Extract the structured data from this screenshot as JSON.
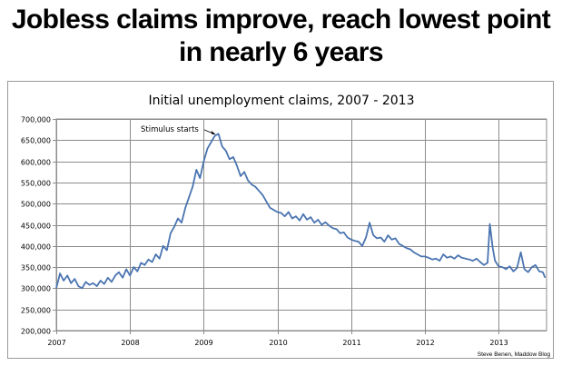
{
  "headline": {
    "line1": "Jobless claims improve, reach lowest point",
    "line2": "in nearly 6 years"
  },
  "credit": "Steve Benen, Maddow Blog",
  "colors": {
    "line": "#4a74b0",
    "grid": "#8c8c8c",
    "text": "#000000"
  },
  "chart_data": {
    "type": "line",
    "title": "Initial unemployment claims, 2007 - 2013",
    "xlabel": "",
    "ylabel": "",
    "xlim": [
      2007.0,
      2013.65
    ],
    "ylim": [
      200000,
      700000
    ],
    "grid": true,
    "legend": "none",
    "x_ticks": [
      2007,
      2008,
      2009,
      2010,
      2011,
      2012,
      2013
    ],
    "x_tick_labels": [
      "2007",
      "2008",
      "2009",
      "2010",
      "2011",
      "2012",
      "2013"
    ],
    "y_ticks": [
      200000,
      250000,
      300000,
      350000,
      400000,
      450000,
      500000,
      550000,
      600000,
      650000,
      700000
    ],
    "y_tick_labels": [
      "200,000",
      "250,000",
      "300,000",
      "350,000",
      "400,000",
      "450,000",
      "500,000",
      "550,000",
      "600,000",
      "650,000",
      "700,000"
    ],
    "annotations": [
      {
        "text": "Stimulus starts",
        "x": 2009.1,
        "y": 668000
      }
    ],
    "series": [
      {
        "x": [
          2007.0,
          2007.05,
          2007.1,
          2007.15,
          2007.2,
          2007.25,
          2007.3,
          2007.35,
          2007.4,
          2007.45,
          2007.5,
          2007.55,
          2007.6,
          2007.65,
          2007.7,
          2007.75,
          2007.8,
          2007.85,
          2007.9,
          2007.95,
          2008.0,
          2008.05,
          2008.1,
          2008.15,
          2008.2,
          2008.25,
          2008.3,
          2008.35,
          2008.4,
          2008.45,
          2008.5,
          2008.55,
          2008.6,
          2008.65,
          2008.7,
          2008.75,
          2008.8,
          2008.85,
          2008.9,
          2008.95,
          2009.0,
          2009.05,
          2009.1,
          2009.15,
          2009.2,
          2009.25,
          2009.3,
          2009.35,
          2009.4,
          2009.45,
          2009.5,
          2009.55,
          2009.6,
          2009.65,
          2009.7,
          2009.75,
          2009.8,
          2009.85,
          2009.9,
          2009.95,
          2010.0,
          2010.05,
          2010.1,
          2010.15,
          2010.2,
          2010.25,
          2010.3,
          2010.35,
          2010.4,
          2010.45,
          2010.5,
          2010.55,
          2010.6,
          2010.65,
          2010.7,
          2010.75,
          2010.8,
          2010.85,
          2010.9,
          2010.95,
          2011.0,
          2011.05,
          2011.1,
          2011.15,
          2011.2,
          2011.25,
          2011.3,
          2011.35,
          2011.4,
          2011.45,
          2011.5,
          2011.55,
          2011.6,
          2011.65,
          2011.7,
          2011.75,
          2011.8,
          2011.85,
          2011.9,
          2011.95,
          2012.0,
          2012.05,
          2012.1,
          2012.15,
          2012.2,
          2012.25,
          2012.3,
          2012.35,
          2012.4,
          2012.45,
          2012.5,
          2012.55,
          2012.6,
          2012.65,
          2012.7,
          2012.75,
          2012.8,
          2012.85,
          2012.88,
          2012.92,
          2012.95,
          2013.0,
          2013.05,
          2013.1,
          2013.15,
          2013.2,
          2013.25,
          2013.3,
          2013.35,
          2013.4,
          2013.45,
          2013.5,
          2013.55,
          2013.6,
          2013.63
        ],
        "values": [
          300000,
          335000,
          318000,
          330000,
          312000,
          322000,
          305000,
          300000,
          315000,
          308000,
          312000,
          305000,
          318000,
          310000,
          325000,
          315000,
          330000,
          338000,
          325000,
          345000,
          330000,
          350000,
          340000,
          360000,
          355000,
          368000,
          362000,
          380000,
          370000,
          400000,
          390000,
          430000,
          445000,
          465000,
          455000,
          490000,
          515000,
          540000,
          580000,
          560000,
          600000,
          630000,
          645000,
          660000,
          665000,
          635000,
          625000,
          605000,
          610000,
          590000,
          565000,
          575000,
          555000,
          545000,
          540000,
          530000,
          520000,
          505000,
          490000,
          485000,
          480000,
          478000,
          470000,
          480000,
          465000,
          470000,
          460000,
          475000,
          462000,
          468000,
          455000,
          462000,
          450000,
          456000,
          448000,
          442000,
          440000,
          430000,
          432000,
          420000,
          415000,
          412000,
          410000,
          400000,
          420000,
          455000,
          425000,
          418000,
          420000,
          410000,
          425000,
          415000,
          418000,
          405000,
          400000,
          395000,
          392000,
          385000,
          380000,
          375000,
          375000,
          372000,
          368000,
          370000,
          365000,
          380000,
          372000,
          375000,
          370000,
          378000,
          372000,
          370000,
          368000,
          365000,
          370000,
          362000,
          355000,
          360000,
          452000,
          395000,
          365000,
          352000,
          350000,
          345000,
          352000,
          340000,
          348000,
          385000,
          345000,
          338000,
          350000,
          355000,
          340000,
          338000,
          325000
        ]
      }
    ]
  }
}
